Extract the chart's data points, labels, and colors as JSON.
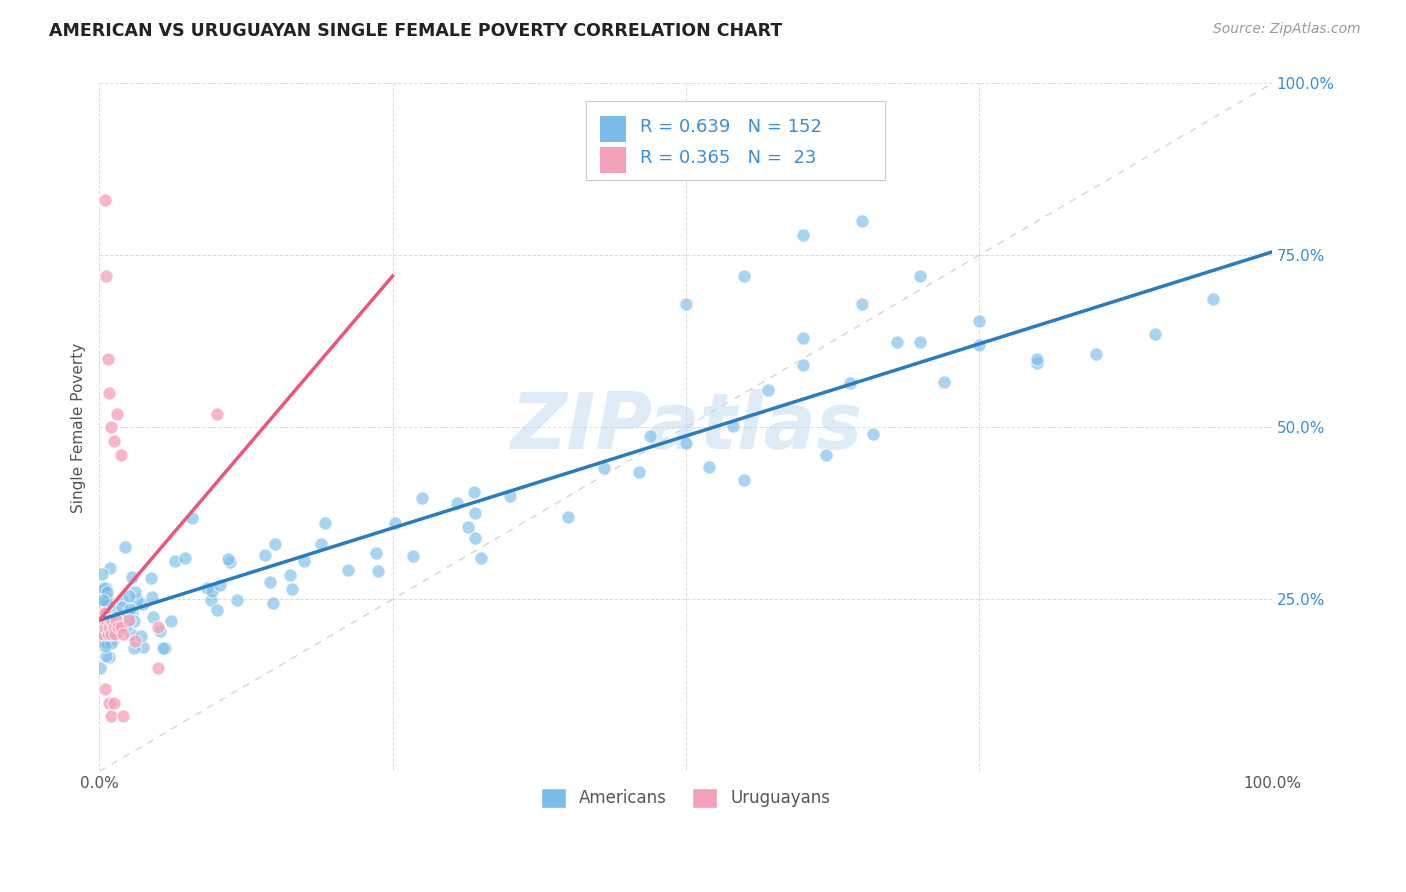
{
  "title": "AMERICAN VS URUGUAYAN SINGLE FEMALE POVERTY CORRELATION CHART",
  "source": "Source: ZipAtlas.com",
  "ylabel": "Single Female Poverty",
  "r_blue": 0.639,
  "n_blue": 152,
  "r_pink": 0.365,
  "n_pink": 23,
  "color_blue": "#7bbde8",
  "color_pink": "#f4a0b8",
  "color_blue_text": "#3a8fd1",
  "watermark_text": "ZIPatlas",
  "background_color": "#ffffff",
  "grid_color": "#d8d8d8",
  "diag_line_color": "#cccccc",
  "blue_line_color": "#2b7bbf",
  "pink_line_color": "#e8587a",
  "xlim": [
    0.0,
    1.0
  ],
  "ylim": [
    0.0,
    1.0
  ],
  "blue_line_x0": 0.0,
  "blue_line_y0": 0.22,
  "blue_line_x1": 1.0,
  "blue_line_y1": 0.755,
  "pink_line_x0": 0.0,
  "pink_line_y0": 0.22,
  "pink_line_x1": 0.25,
  "pink_line_y1": 0.72
}
